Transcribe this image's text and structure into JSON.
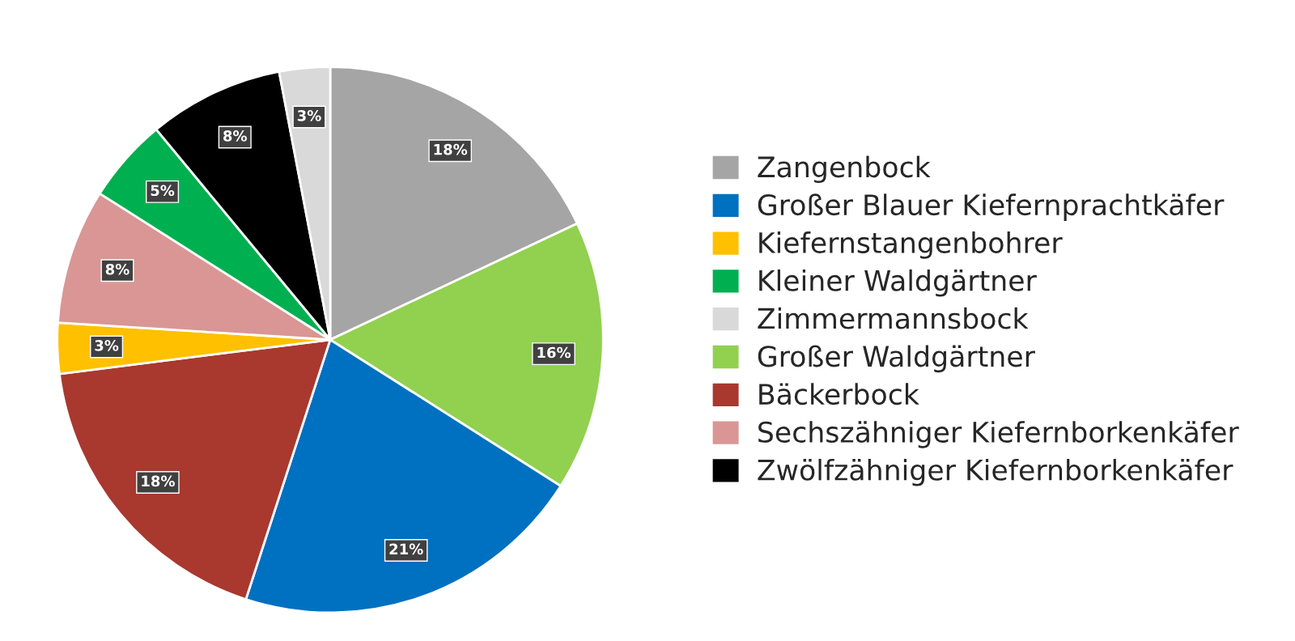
{
  "chart_data": {
    "type": "pie",
    "categories": [
      "Zangenbock",
      "Großer Waldgärtner",
      "Großer Blauer Kiefernprachtkäfer",
      "Bäckerbock",
      "Kiefernstangenbohrer",
      "Sechszähniger Kiefernborkenkäfer",
      "Kleiner Waldgärtner",
      "Zwölfzähniger Kiefernborkenkäfer",
      "Zimmermannsbock"
    ],
    "values": [
      18,
      16,
      21,
      18,
      3,
      8,
      5,
      8,
      3
    ],
    "colors": [
      "#a5a5a5",
      "#92d050",
      "#0070c0",
      "#a9382f",
      "#ffc000",
      "#d99694",
      "#00b050",
      "#000000",
      "#d9d9d9"
    ],
    "value_labels": [
      "18%",
      "16%",
      "21%",
      "18%",
      "3%",
      "8%",
      "5%",
      "8%",
      "3%"
    ],
    "legend": "right"
  }
}
